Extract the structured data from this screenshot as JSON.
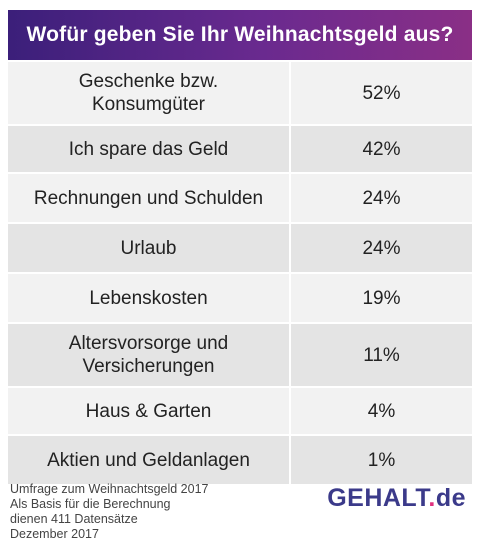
{
  "chart_data": {
    "type": "table",
    "title": "Wofür geben Sie Ihr Weihnachtsgeld aus?",
    "rows": [
      {
        "label": "Geschenke bzw.\nKonsumgüter",
        "value": "52%"
      },
      {
        "label": "Ich spare das Geld",
        "value": "42%"
      },
      {
        "label": "Rechnungen und Schulden",
        "value": "24%"
      },
      {
        "label": "Urlaub",
        "value": "24%"
      },
      {
        "label": "Lebenskosten",
        "value": "19%"
      },
      {
        "label": "Altersvorsorge und\nVersicherungen",
        "value": "11%"
      },
      {
        "label": "Haus & Garten",
        "value": "4%"
      },
      {
        "label": "Aktien und Geldanlagen",
        "value": "1%"
      }
    ]
  },
  "footer": {
    "note": "Umfrage zum Weihnachtsgeld 2017\nAls Basis für die Berechnung\ndienen 411 Datensätze\nDezember 2017"
  },
  "logo": {
    "brand": "GEHALT",
    "dot": ".",
    "tld": "de"
  },
  "colors": {
    "header_start": "#3b1f7a",
    "header_end": "#8a2f86",
    "logo_text": "#3b3a8a",
    "logo_dot": "#e0317f"
  }
}
